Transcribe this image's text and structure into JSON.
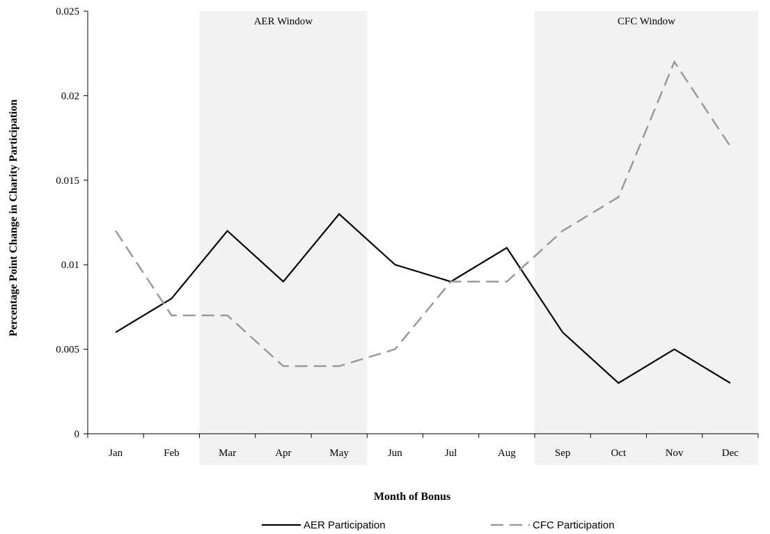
{
  "chart_data": {
    "type": "line",
    "title": "",
    "xlabel": "Month of Bonus",
    "ylabel": "Percentage Point Change in Charity Participation",
    "categories": [
      "Jan",
      "Feb",
      "Mar",
      "Apr",
      "May",
      "Jun",
      "Jul",
      "Aug",
      "Sep",
      "Oct",
      "Nov",
      "Dec"
    ],
    "ylim": [
      0,
      0.025
    ],
    "yticks": [
      0,
      0.005,
      0.01,
      0.015,
      0.02,
      0.025
    ],
    "ytick_labels": [
      "0",
      "0.005",
      "0.01",
      "0.015",
      "0.02",
      "0.025"
    ],
    "series": [
      {
        "name": "AER Participation",
        "values": [
          0.006,
          0.008,
          0.012,
          0.009,
          0.013,
          0.01,
          0.009,
          0.011,
          0.006,
          0.003,
          0.005,
          0.003
        ],
        "color": "#000000",
        "style": "solid"
      },
      {
        "name": "CFC Participation",
        "values": [
          0.012,
          0.007,
          0.007,
          0.004,
          0.004,
          0.005,
          0.009,
          0.009,
          0.012,
          0.014,
          0.022,
          0.017
        ],
        "color": "#999999",
        "style": "dashed"
      }
    ],
    "shaded_windows": [
      {
        "label": "AER Window",
        "from": "Mar",
        "to": "May",
        "color": "#f2f2f2"
      },
      {
        "label": "CFC Window",
        "from": "Sep",
        "to": "Dec",
        "color": "#f2f2f2"
      }
    ],
    "legend": "bottom",
    "grid": false
  }
}
